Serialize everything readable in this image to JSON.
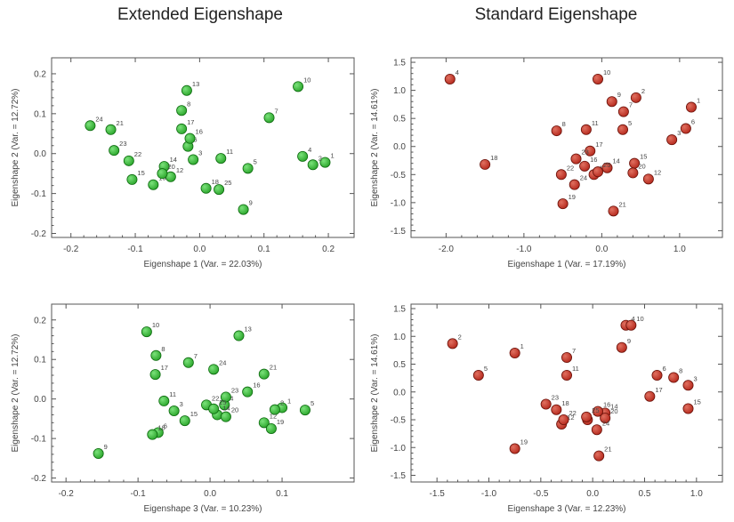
{
  "titles": {
    "left": "Extended Eigenshape",
    "right": "Standard Eigenshape"
  },
  "colors": {
    "green_fill": "#2aa52a",
    "green_stroke": "#0e6b10",
    "red_fill": "#b5281c",
    "red_stroke": "#6b120a",
    "axis": "#555555",
    "label_text": "#444444"
  },
  "chart_data": [
    {
      "type": "scatter",
      "xlabel": "Eigenshape 1 (Var. = 22.03%)",
      "ylabel": "Eigenshape 2 (Var. = 12.72%)",
      "xlim": [
        -0.23,
        0.24
      ],
      "ylim": [
        -0.21,
        0.24
      ],
      "xticks": [
        -0.2,
        -0.1,
        0.0,
        0.1,
        0.2
      ],
      "xticklabels": [
        "-0.2",
        "-0.1",
        "0.0",
        "0.1",
        "0.2"
      ],
      "yticks": [
        -0.2,
        -0.1,
        0.0,
        0.1,
        0.2
      ],
      "yticklabels": [
        "-0.2",
        "-0.1",
        "0.0",
        "0.1",
        "0.2"
      ],
      "marker_color": "green",
      "points": [
        {
          "label": "1",
          "x": 0.195,
          "y": -0.022
        },
        {
          "label": "2",
          "x": 0.176,
          "y": -0.028
        },
        {
          "label": "3",
          "x": -0.01,
          "y": -0.015
        },
        {
          "label": "4",
          "x": 0.16,
          "y": -0.007
        },
        {
          "label": "5",
          "x": 0.075,
          "y": -0.037
        },
        {
          "label": "6",
          "x": -0.018,
          "y": 0.018
        },
        {
          "label": "7",
          "x": 0.108,
          "y": 0.09
        },
        {
          "label": "8",
          "x": -0.028,
          "y": 0.108
        },
        {
          "label": "9",
          "x": 0.068,
          "y": -0.14
        },
        {
          "label": "10",
          "x": 0.153,
          "y": 0.168
        },
        {
          "label": "11",
          "x": 0.033,
          "y": -0.012
        },
        {
          "label": "12",
          "x": -0.045,
          "y": -0.058
        },
        {
          "label": "13",
          "x": -0.02,
          "y": 0.158
        },
        {
          "label": "14",
          "x": -0.055,
          "y": -0.032
        },
        {
          "label": "15",
          "x": -0.105,
          "y": -0.065
        },
        {
          "label": "16",
          "x": -0.015,
          "y": 0.038
        },
        {
          "label": "17",
          "x": -0.028,
          "y": 0.062
        },
        {
          "label": "18",
          "x": 0.01,
          "y": -0.087
        },
        {
          "label": "19",
          "x": -0.072,
          "y": -0.078
        },
        {
          "label": "20",
          "x": -0.058,
          "y": -0.05
        },
        {
          "label": "21",
          "x": -0.138,
          "y": 0.06
        },
        {
          "label": "22",
          "x": -0.11,
          "y": -0.018
        },
        {
          "label": "23",
          "x": -0.133,
          "y": 0.008
        },
        {
          "label": "24",
          "x": -0.17,
          "y": 0.07
        },
        {
          "label": "25",
          "x": 0.03,
          "y": -0.09
        }
      ]
    },
    {
      "type": "scatter",
      "xlabel": "Eigenshape 1 (Var. = 17.19%)",
      "ylabel": "Eigenshape 2 (Var. = 14.61%)",
      "xlim": [
        -2.45,
        1.55
      ],
      "ylim": [
        -1.62,
        1.58
      ],
      "xticks": [
        -2.0,
        -1.0,
        0.0,
        1.0
      ],
      "xticklabels": [
        "-2.0",
        "-1.0",
        "0.0",
        "1.0"
      ],
      "yticks": [
        -1.5,
        -1.0,
        -0.5,
        0.0,
        0.5,
        1.0,
        1.5
      ],
      "yticklabels": [
        "-1.5",
        "-1.0",
        "-0.5",
        "0.0",
        "0.5",
        "1.0",
        "1.5"
      ],
      "marker_color": "red",
      "points": [
        {
          "label": "1",
          "x": 1.15,
          "y": 0.7
        },
        {
          "label": "2",
          "x": 0.44,
          "y": 0.87
        },
        {
          "label": "3",
          "x": 0.9,
          "y": 0.12
        },
        {
          "label": "4",
          "x": -1.95,
          "y": 1.2
        },
        {
          "label": "5",
          "x": 0.27,
          "y": 0.3
        },
        {
          "label": "6",
          "x": 1.08,
          "y": 0.32
        },
        {
          "label": "7",
          "x": 0.28,
          "y": 0.62
        },
        {
          "label": "8",
          "x": -0.58,
          "y": 0.28
        },
        {
          "label": "9",
          "x": 0.13,
          "y": 0.8
        },
        {
          "label": "10",
          "x": -0.05,
          "y": 1.2
        },
        {
          "label": "11",
          "x": -0.2,
          "y": 0.3
        },
        {
          "label": "12",
          "x": 0.6,
          "y": -0.58
        },
        {
          "label": "13",
          "x": -0.1,
          "y": -0.5
        },
        {
          "label": "14",
          "x": 0.07,
          "y": -0.38
        },
        {
          "label": "15",
          "x": 0.42,
          "y": -0.3
        },
        {
          "label": "16",
          "x": -0.22,
          "y": -0.35
        },
        {
          "label": "17",
          "x": -0.15,
          "y": -0.08
        },
        {
          "label": "18",
          "x": -1.5,
          "y": -0.32
        },
        {
          "label": "19",
          "x": -0.5,
          "y": -1.02
        },
        {
          "label": "20",
          "x": 0.4,
          "y": -0.47
        },
        {
          "label": "21",
          "x": 0.15,
          "y": -1.15
        },
        {
          "label": "22",
          "x": -0.52,
          "y": -0.5
        },
        {
          "label": "23",
          "x": -0.33,
          "y": -0.22
        },
        {
          "label": "24",
          "x": -0.35,
          "y": -0.68
        },
        {
          "label": "25",
          "x": -0.05,
          "y": -0.45
        }
      ]
    },
    {
      "type": "scatter",
      "xlabel": "Eigenshape 3 (Var. = 10.23%)",
      "ylabel": "Eigenshape 2 (Var. = 12.72%)",
      "xlim": [
        -0.22,
        0.2
      ],
      "ylim": [
        -0.21,
        0.24
      ],
      "xticks": [
        -0.2,
        -0.1,
        0.0,
        0.1
      ],
      "xticklabels": [
        "-0.2",
        "-0.1",
        "0.0",
        "0.1"
      ],
      "yticks": [
        -0.2,
        -0.1,
        0.0,
        0.1,
        0.2
      ],
      "yticklabels": [
        "-0.2",
        "-0.1",
        "0.0",
        "0.1",
        "0.2"
      ],
      "marker_color": "green",
      "points": [
        {
          "label": "1",
          "x": 0.1,
          "y": -0.022
        },
        {
          "label": "2",
          "x": 0.09,
          "y": -0.027
        },
        {
          "label": "3",
          "x": -0.05,
          "y": -0.03
        },
        {
          "label": "4",
          "x": 0.02,
          "y": -0.015
        },
        {
          "label": "5",
          "x": 0.132,
          "y": -0.028
        },
        {
          "label": "6",
          "x": -0.072,
          "y": -0.085
        },
        {
          "label": "7",
          "x": -0.03,
          "y": 0.092
        },
        {
          "label": "8",
          "x": -0.075,
          "y": 0.11
        },
        {
          "label": "9",
          "x": -0.155,
          "y": -0.138
        },
        {
          "label": "10",
          "x": -0.088,
          "y": 0.17
        },
        {
          "label": "11",
          "x": -0.064,
          "y": -0.005
        },
        {
          "label": "12",
          "x": 0.075,
          "y": -0.06
        },
        {
          "label": "13",
          "x": 0.04,
          "y": 0.16
        },
        {
          "label": "14",
          "x": 0.01,
          "y": -0.04
        },
        {
          "label": "15",
          "x": -0.035,
          "y": -0.055
        },
        {
          "label": "16",
          "x": 0.052,
          "y": 0.018
        },
        {
          "label": "17",
          "x": -0.076,
          "y": 0.062
        },
        {
          "label": "18",
          "x": -0.08,
          "y": -0.09
        },
        {
          "label": "19",
          "x": 0.085,
          "y": -0.075
        },
        {
          "label": "20",
          "x": 0.022,
          "y": -0.045
        },
        {
          "label": "21",
          "x": 0.075,
          "y": 0.063
        },
        {
          "label": "22",
          "x": -0.005,
          "y": -0.015
        },
        {
          "label": "23",
          "x": 0.022,
          "y": 0.005
        },
        {
          "label": "24",
          "x": 0.005,
          "y": 0.075
        },
        {
          "label": "25",
          "x": 0.005,
          "y": -0.025
        }
      ]
    },
    {
      "type": "scatter",
      "xlabel": "Eigenshape 3 (Var. = 12.23%)",
      "ylabel": "Eigenshape 2 (Var. = 14.61%)",
      "xlim": [
        -1.75,
        1.25
      ],
      "ylim": [
        -1.62,
        1.58
      ],
      "xticks": [
        -1.5,
        -1.0,
        -0.5,
        0.0,
        0.5,
        1.0
      ],
      "xticklabels": [
        "-1.5",
        "-1.0",
        "-0.5",
        "0.0",
        "0.5",
        "1.0"
      ],
      "yticks": [
        -1.5,
        -1.0,
        -0.5,
        0.0,
        0.5,
        1.0,
        1.5
      ],
      "yticklabels": [
        "-1.5",
        "-1.0",
        "-0.5",
        "0.0",
        "0.5",
        "1.0",
        "1.5"
      ],
      "marker_color": "red",
      "points": [
        {
          "label": "1",
          "x": -0.75,
          "y": 0.7
        },
        {
          "label": "2",
          "x": -1.35,
          "y": 0.87
        },
        {
          "label": "3",
          "x": 0.92,
          "y": 0.12
        },
        {
          "label": "4",
          "x": 0.32,
          "y": 1.2
        },
        {
          "label": "5",
          "x": -1.1,
          "y": 0.3
        },
        {
          "label": "6",
          "x": 0.62,
          "y": 0.3
        },
        {
          "label": "7",
          "x": -0.25,
          "y": 0.62
        },
        {
          "label": "8",
          "x": 0.78,
          "y": 0.26
        },
        {
          "label": "9",
          "x": 0.28,
          "y": 0.8
        },
        {
          "label": "10",
          "x": 0.37,
          "y": 1.2
        },
        {
          "label": "11",
          "x": -0.25,
          "y": 0.3
        },
        {
          "label": "12",
          "x": -0.3,
          "y": -0.58
        },
        {
          "label": "13",
          "x": -0.05,
          "y": -0.5
        },
        {
          "label": "14",
          "x": 0.12,
          "y": -0.38
        },
        {
          "label": "15",
          "x": 0.92,
          "y": -0.3
        },
        {
          "label": "16",
          "x": 0.05,
          "y": -0.35
        },
        {
          "label": "17",
          "x": 0.55,
          "y": -0.08
        },
        {
          "label": "18",
          "x": -0.35,
          "y": -0.32
        },
        {
          "label": "19",
          "x": -0.75,
          "y": -1.02
        },
        {
          "label": "20",
          "x": 0.12,
          "y": -0.47
        },
        {
          "label": "21",
          "x": 0.06,
          "y": -1.15
        },
        {
          "label": "22",
          "x": -0.28,
          "y": -0.5
        },
        {
          "label": "23",
          "x": -0.45,
          "y": -0.22
        },
        {
          "label": "24",
          "x": 0.04,
          "y": -0.68
        },
        {
          "label": "25",
          "x": -0.06,
          "y": -0.45
        }
      ]
    }
  ]
}
